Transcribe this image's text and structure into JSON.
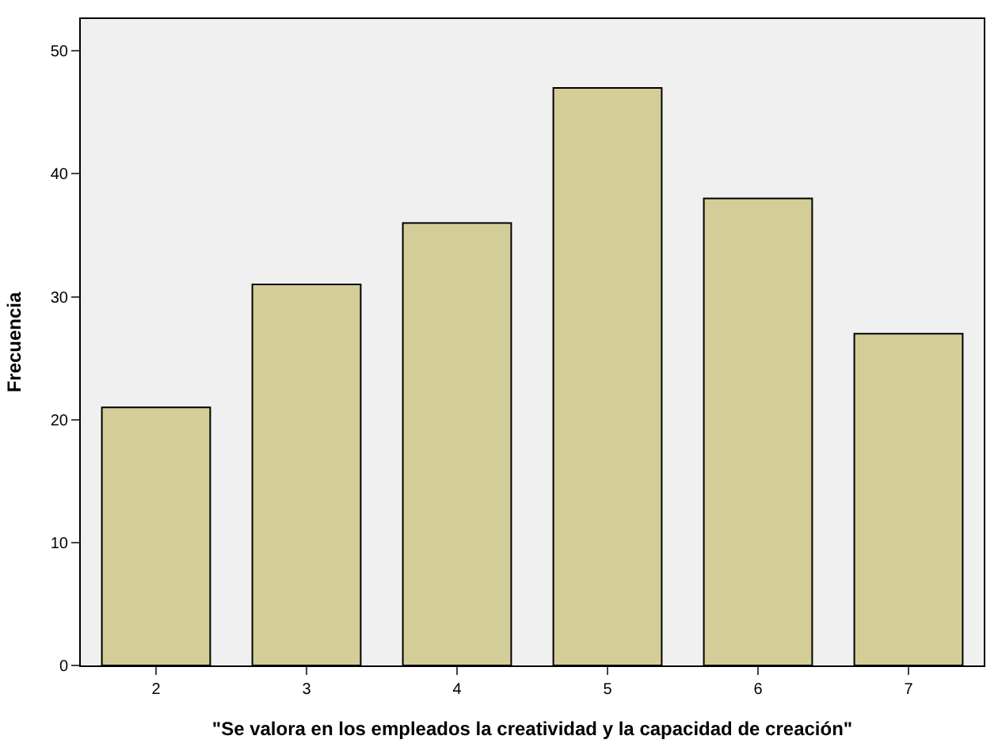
{
  "chart_data": {
    "type": "bar",
    "xlabel": "\"Se valora en los empleados la creatividad y la capacidad de creación\"",
    "ylabel": "Frecuencia",
    "categories": [
      "2",
      "3",
      "4",
      "5",
      "6",
      "7"
    ],
    "values": [
      21,
      31,
      36,
      47,
      38,
      27
    ],
    "color": "#d3ce98",
    "ylim": [
      0,
      52.6
    ],
    "yticks": [
      0,
      10,
      20,
      30,
      40,
      50
    ],
    "grid": false,
    "legend": false
  }
}
